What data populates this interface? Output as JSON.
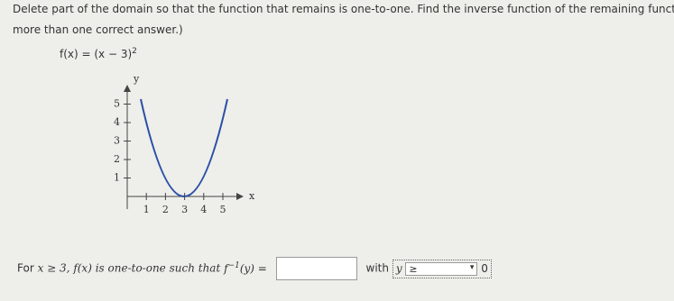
{
  "question": {
    "line1": "Delete part of the domain so that the function that remains is one-to-one. Find the inverse function of the remaining funct",
    "line2": "more than one correct answer.)"
  },
  "function": {
    "lhs": "f(x) = (x − 3)",
    "exponent": "2"
  },
  "graph": {
    "x_label": "x",
    "y_label": "y",
    "xlim": [
      0,
      6
    ],
    "ylim": [
      0,
      5.8
    ],
    "xticks": [
      1,
      2,
      3,
      4,
      5
    ],
    "yticks": [
      1,
      2,
      3,
      4,
      5
    ]
  },
  "answer": {
    "for": "For",
    "condition": "x ≥ 3,",
    "middle": "f(x) is one-to-one such that",
    "inverse_f": "f",
    "inverse_exp": "−1",
    "inverse_arg": "(y) =",
    "with": "with",
    "var": "y",
    "relation": "≥",
    "bound": "0"
  }
}
